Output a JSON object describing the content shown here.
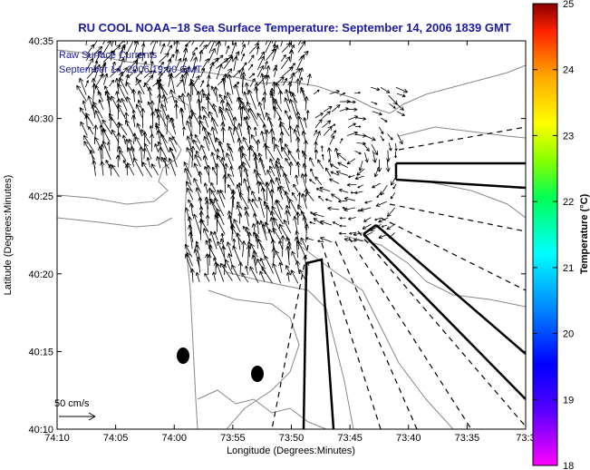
{
  "title": "RU COOL  NOAA−18  Sea Surface Temperature:  September 14, 2006 1839 GMT",
  "subtitle_line1": "Raw Surface Currents",
  "subtitle_line2": "September 14, 2006 19:00 GMT",
  "scale_label": "50 cm/s",
  "colors": {
    "title_text": "#1a1aa0",
    "ink": "#000000",
    "contour": "#888888"
  },
  "chart_data": {
    "type": "map",
    "xlabel": "Longitude (Degrees:Minutes)",
    "ylabel": "Latitude (Degrees:Minutes)",
    "x_ticks": [
      "74:10",
      "74:05",
      "74:00",
      "73:55",
      "73:50",
      "73:45",
      "73:40",
      "73:35",
      "73:3"
    ],
    "y_ticks": [
      "40:35",
      "40:30",
      "40:25",
      "40:20",
      "40:15",
      "40:10"
    ],
    "xlim": [
      "74:10",
      "73:30"
    ],
    "ylim": [
      "40:10",
      "40:35"
    ],
    "colorbar": {
      "label": "Temperature (°C)",
      "ticks": [
        "25",
        "24",
        "23",
        "22",
        "21",
        "20",
        "19",
        "18"
      ],
      "range": [
        18,
        25
      ]
    }
  }
}
